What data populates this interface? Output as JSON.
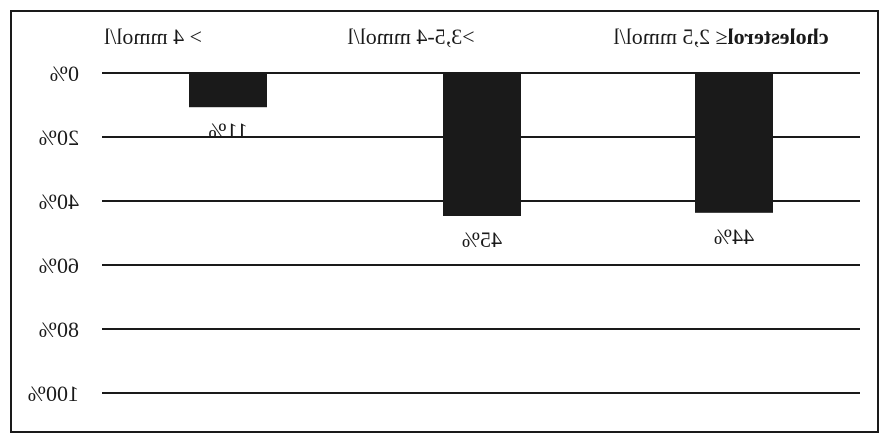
{
  "chart_data": {
    "type": "bar",
    "orientation": "vertical-downward",
    "rendering": "mirrored-horizontally",
    "categories": [
      {
        "bold_prefix": "cholesterol",
        "text": "≤ 2,5 mmol/l"
      },
      {
        "bold_prefix": "",
        "text": ">3,5-4 mmol/l"
      },
      {
        "bold_prefix": "",
        "text": "> 4 mmol/l"
      }
    ],
    "values": [
      11,
      45,
      44
    ],
    "value_labels": [
      "11%",
      "45%",
      "44%"
    ],
    "ylim": [
      0,
      100
    ],
    "y_ticks": [
      0,
      20,
      40,
      60,
      80,
      100
    ],
    "y_tick_labels": [
      "0%",
      "20%",
      "40%",
      "60%",
      "80%",
      "100%"
    ],
    "grid": true,
    "bar_color": "#1a1a1a",
    "title": "",
    "xlabel": "",
    "ylabel": ""
  }
}
